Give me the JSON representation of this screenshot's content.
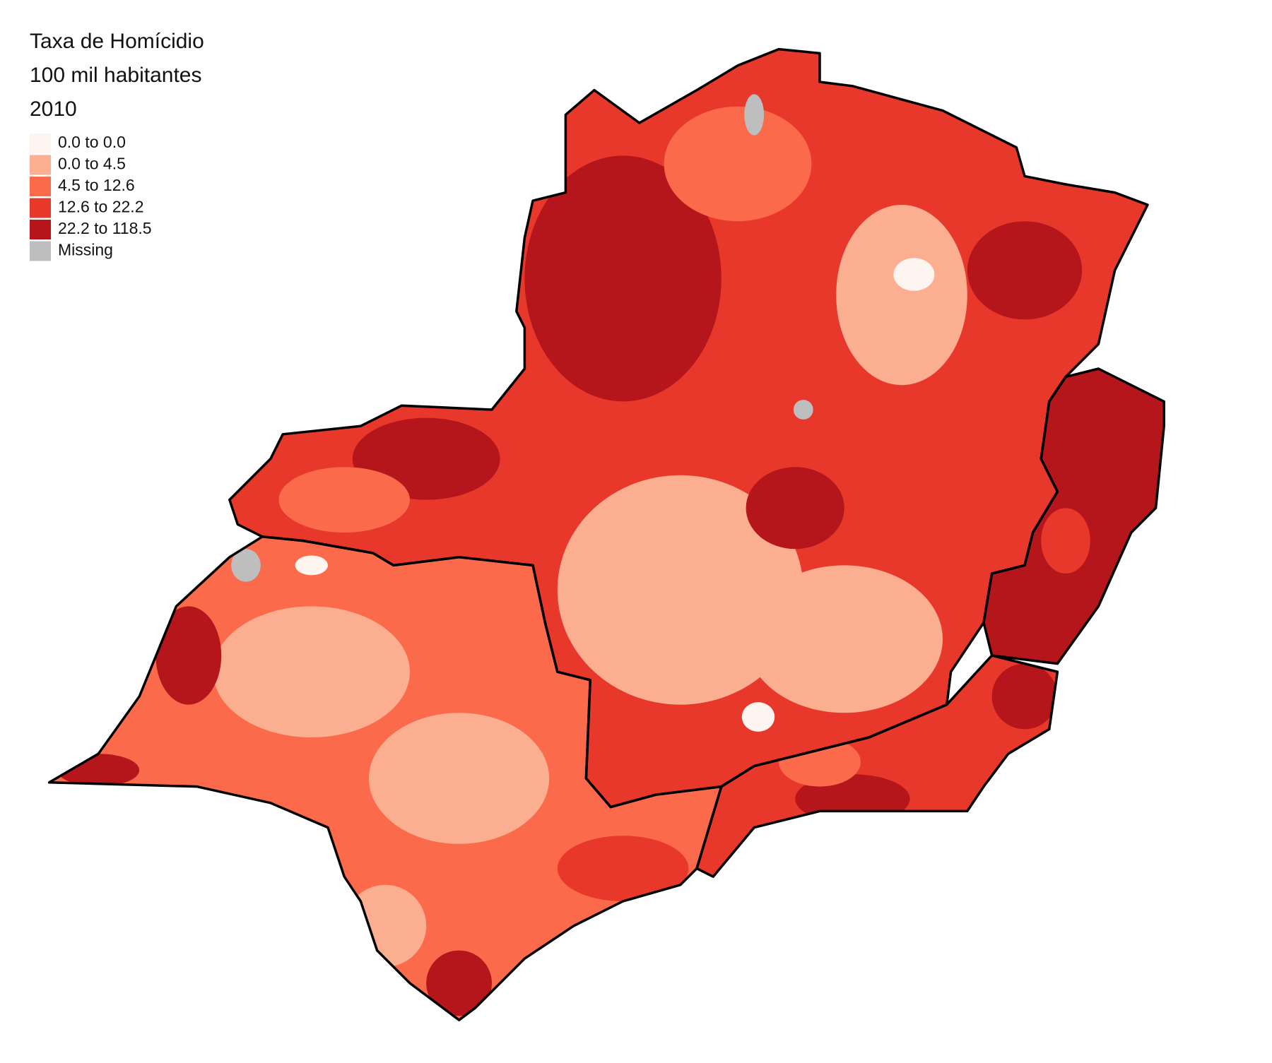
{
  "legend": {
    "title": [
      "Taxa de Homícidio",
      "100 mil habitantes",
      "2010"
    ],
    "items": [
      {
        "label": "0.0 to 0.0",
        "color": "#fff5f0"
      },
      {
        "label": "0.0 to 4.5",
        "color": "#fcae91"
      },
      {
        "label": "4.5 to 12.6",
        "color": "#fb6a4a"
      },
      {
        "label": "12.6 to 22.2",
        "color": "#e8382b"
      },
      {
        "label": "22.2 to 118.5",
        "color": "#b5161b"
      },
      {
        "label": "Missing",
        "color": "#bebebe"
      }
    ]
  }
}
